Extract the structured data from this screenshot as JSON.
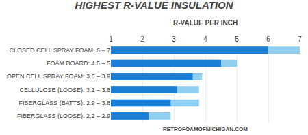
{
  "chart_data": {
    "type": "bar",
    "orientation": "horizontal",
    "title": "HIGHEST R-VALUE INSULATION",
    "subtitle": "R-VALUE PER INCH",
    "annotations": [
      "RETROFOAMOFMICHIGAN.COM"
    ],
    "categories": [
      "CLOSED CELL SPRAY FOAM: 6 – 7",
      "FOAM BOARD: 4.5 – 5",
      "OPEN CELL SPRAY FOAM: 3.6 – 3.9",
      "CELLULOSE (LOOSE): 3.1 – 3.8",
      "FIBERGLASS (BATTS): 2.9 – 3.8",
      "FIBERGLASS (LOOSE): 2.2 – 2.9"
    ],
    "series": [
      {
        "color": "#1a7fd4",
        "values": [
          6.0,
          4.5,
          3.6,
          3.1,
          2.9,
          2.2
        ]
      },
      {
        "color": "#90cef0",
        "values": [
          7.0,
          5.0,
          3.9,
          3.8,
          3.8,
          2.9
        ]
      }
    ],
    "xlim": [
      1,
      7
    ],
    "xticks": [
      1,
      2,
      3,
      4,
      5,
      6,
      7
    ],
    "grid": true
  }
}
